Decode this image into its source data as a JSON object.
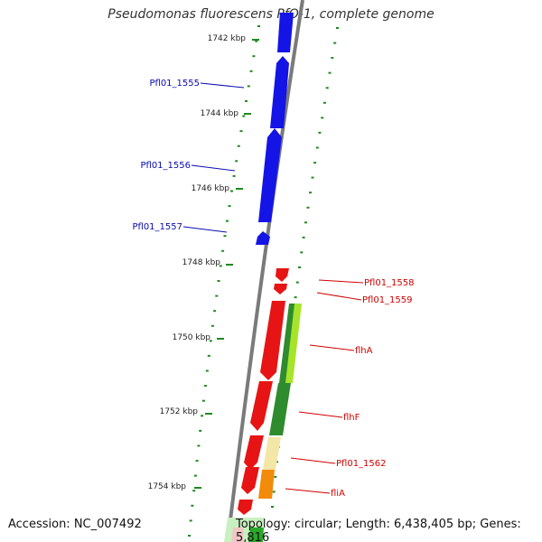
{
  "title": "Pseudomonas fluorescens PfO-1, complete genome",
  "footer": {
    "accession": "Accession: NC_007492",
    "summary": "Topology: circular; Length: 6,438,405 bp; Genes: 5,816"
  },
  "ticks": [
    {
      "label": "1742 kbp"
    },
    {
      "label": "1744 kbp"
    },
    {
      "label": "1746 kbp"
    },
    {
      "label": "1748 kbp"
    },
    {
      "label": "1750 kbp"
    },
    {
      "label": "1752 kbp"
    },
    {
      "label": "1754 kbp"
    }
  ],
  "colors": {
    "forward_strand": "#1414e6",
    "reverse_strand": "#e61414",
    "backbone": "#7a7a7a",
    "tick": "#1f8a1f",
    "label_forward": "#0b0bb0",
    "label_reverse": "#d00000"
  },
  "genes": [
    {
      "label": "Pfl01_1555",
      "strand": "forward"
    },
    {
      "label": "Pfl01_1556",
      "strand": "forward"
    },
    {
      "label": "Pfl01_1557",
      "strand": "forward"
    },
    {
      "label": "Pfl01_1558",
      "strand": "reverse"
    },
    {
      "label": "Pfl01_1559",
      "strand": "reverse"
    },
    {
      "label": "flhA",
      "strand": "reverse"
    },
    {
      "label": "flhF",
      "strand": "reverse"
    },
    {
      "label": "Pfl01_1562",
      "strand": "reverse"
    },
    {
      "label": "fliA",
      "strand": "reverse"
    }
  ]
}
